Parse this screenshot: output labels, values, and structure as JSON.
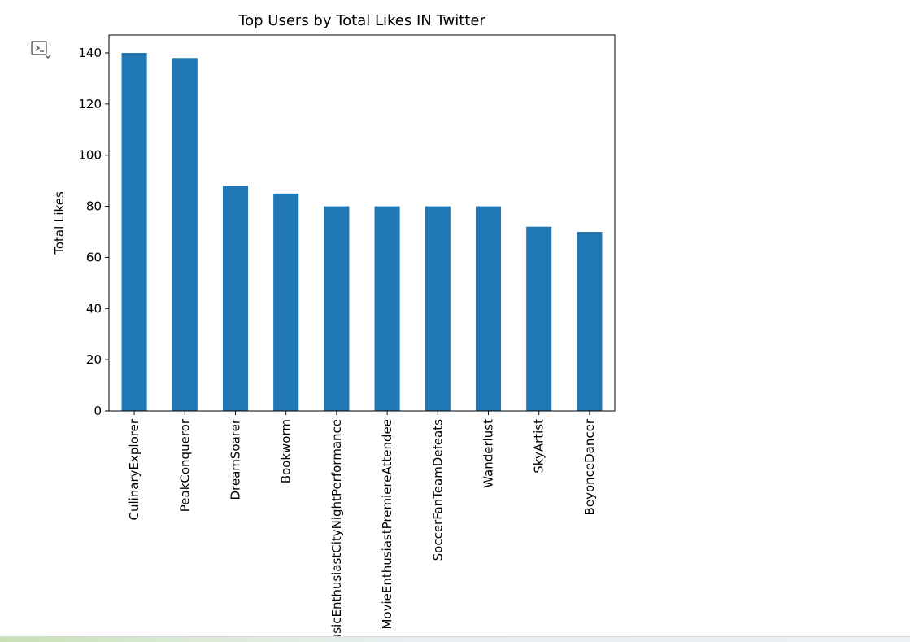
{
  "output": {
    "icon": "output-toggle-icon"
  },
  "chart_data": {
    "type": "bar",
    "title": "Top Users by Total Likes IN Twitter",
    "xlabel": "",
    "ylabel": "Total Likes",
    "categories": [
      "CulinaryExplorer",
      "PeakConqueror",
      "DreamSoarer",
      "Bookworm",
      "MusicEnthusiastCityNightPerformance",
      "MovieEnthusiastPremiereAttendee",
      "SoccerFanTeamDefeats",
      "Wanderlust",
      "SkyArtist",
      "BeyonceDancer"
    ],
    "values": [
      140,
      138,
      88,
      85,
      80,
      80,
      80,
      80,
      72,
      70
    ],
    "yticks": [
      0,
      20,
      40,
      60,
      80,
      100,
      120,
      140
    ],
    "ylim": [
      0,
      147
    ],
    "bar_color": "#1f77b4",
    "grid": false,
    "legend": "none"
  }
}
